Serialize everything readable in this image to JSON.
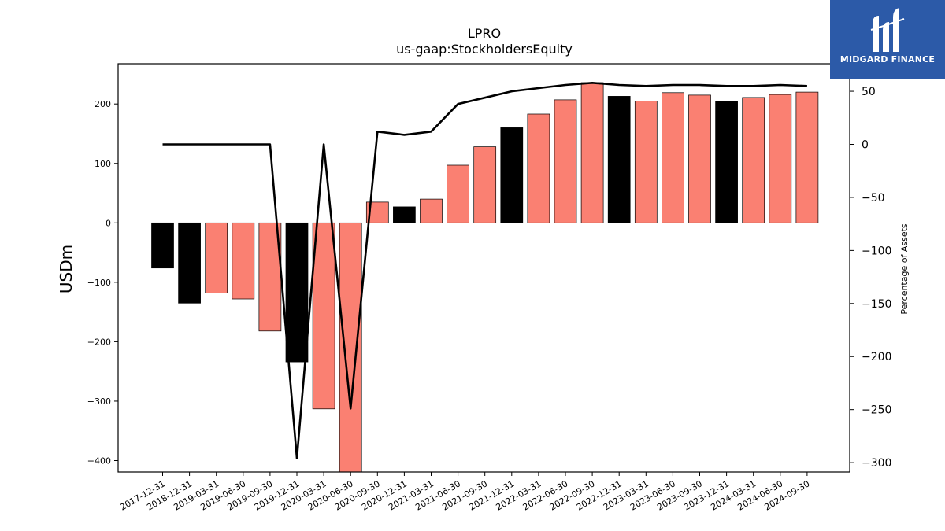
{
  "logo": {
    "text": "MIDGARD FINANCE",
    "bg": "#2c5aa8",
    "icon": "midgard-logo-icon"
  },
  "chart_data": {
    "type": "bar",
    "title": "LPRO",
    "subtitle": "us-gaap:StockholdersEquity",
    "ylabel": "USDm",
    "y2label": "Percentage of Assets",
    "ylim": [
      -420,
      267
    ],
    "y2lim": [
      -308,
      60
    ],
    "yticks": [
      -400,
      -300,
      -200,
      -100,
      0,
      100,
      200
    ],
    "y2ticks": [
      -300,
      -250,
      -200,
      -150,
      -100,
      -50,
      0,
      50
    ],
    "grid": false,
    "colors": {
      "positive_change": "#fa8072",
      "negative_change": "#000000",
      "line": "#000000"
    },
    "categories": [
      "2017-12-31",
      "2018-12-31",
      "2019-03-31",
      "2019-06-30",
      "2019-09-30",
      "2019-12-31",
      "2020-03-31",
      "2020-06-30",
      "2020-09-30",
      "2020-12-31",
      "2021-03-31",
      "2021-06-30",
      "2021-09-30",
      "2021-12-31",
      "2022-03-31",
      "2022-06-30",
      "2022-09-30",
      "2022-12-31",
      "2023-03-31",
      "2023-06-30",
      "2023-09-30",
      "2023-12-31",
      "2024-03-31",
      "2024-06-30",
      "2024-09-30"
    ],
    "series": [
      {
        "type": "bar",
        "values": [
          -76,
          -135,
          -118,
          -128,
          -182,
          -234,
          -313,
          -420,
          35,
          27,
          40,
          97,
          128,
          160,
          183,
          207,
          236,
          213,
          205,
          219,
          215,
          205,
          211,
          216,
          220
        ],
        "bar_colors": [
          "#000000",
          "#000000",
          "#fa8072",
          "#fa8072",
          "#fa8072",
          "#000000",
          "#fa8072",
          "#fa8072",
          "#fa8072",
          "#000000",
          "#fa8072",
          "#fa8072",
          "#fa8072",
          "#000000",
          "#fa8072",
          "#fa8072",
          "#fa8072",
          "#000000",
          "#fa8072",
          "#fa8072",
          "#fa8072",
          "#000000",
          "#fa8072",
          "#fa8072",
          "#fa8072"
        ]
      },
      {
        "type": "line",
        "axis": "right",
        "values": [
          0,
          0,
          0,
          0,
          0,
          -296,
          0,
          -249,
          12,
          9,
          12,
          38,
          44,
          50,
          53,
          56,
          58,
          56,
          55,
          56,
          56,
          55,
          55,
          56,
          55
        ]
      }
    ]
  }
}
